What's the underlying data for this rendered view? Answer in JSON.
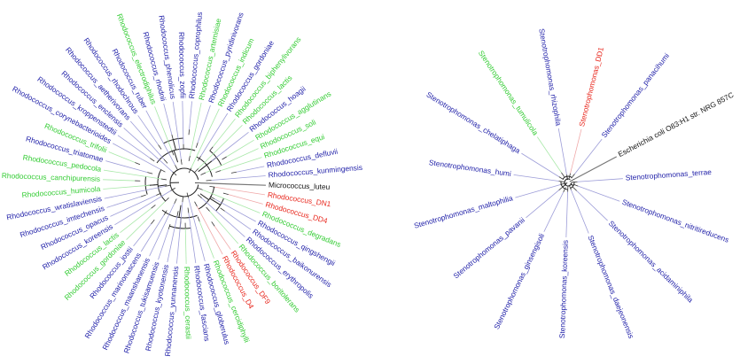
{
  "colors": {
    "blue": "#1f1fa8",
    "green": "#33cc33",
    "red": "#e8281e",
    "black": "#111111",
    "branch_blue": "#9d9dd8",
    "branch_green": "#a8e8a8",
    "branch_red": "#f0a8a8",
    "branch_black": "#777777"
  },
  "left_tree": {
    "leaves": [
      {
        "name": "Micrococcus_luteu",
        "color": "black"
      },
      {
        "name": "Rhodococcus_DN1",
        "color": "red"
      },
      {
        "name": "Rhodococcus_DD4",
        "color": "red"
      },
      {
        "name": "Rhodococcus_degradans",
        "color": "green"
      },
      {
        "name": "Rhodococcus_qingshengii",
        "color": "blue"
      },
      {
        "name": "Rhodococcus_baikonurensis",
        "color": "blue"
      },
      {
        "name": "Rhodococcus_erythropolis",
        "color": "blue"
      },
      {
        "name": "Rhodococcus_boritolerans",
        "color": "green"
      },
      {
        "name": "Rhodococcus_DF9",
        "color": "red"
      },
      {
        "name": "Rhodococcus_D4",
        "color": "red"
      },
      {
        "name": "Rhodococcus_cercidiphylli",
        "color": "green"
      },
      {
        "name": "Rhodococcus_globerulus",
        "color": "blue"
      },
      {
        "name": "Rhodococcus_fascians",
        "color": "blue"
      },
      {
        "name": "Rhodococcus_cerastii",
        "color": "green"
      },
      {
        "name": "Rhodococcus_yunnanensis",
        "color": "blue"
      },
      {
        "name": "Rhodococcus_kyotonensis",
        "color": "blue"
      },
      {
        "name": "Rhodococcus_tukisamuensis",
        "color": "blue"
      },
      {
        "name": "Rhodococcus_maanshanensis",
        "color": "blue"
      },
      {
        "name": "Rhodococcus_marinonascens",
        "color": "blue"
      },
      {
        "name": "Rhodococcus_jostii",
        "color": "blue"
      },
      {
        "name": "Rhodococcus_gordoniae",
        "color": "green"
      },
      {
        "name": "Rhodococcus_lactis",
        "color": "green"
      },
      {
        "name": "Rhodococcus_koreensis",
        "color": "blue"
      },
      {
        "name": "Rhodococcus_opacus",
        "color": "blue"
      },
      {
        "name": "Rhodococcus_imtechensis",
        "color": "blue"
      },
      {
        "name": "Rhodococcus_wratislaviensis",
        "color": "blue"
      },
      {
        "name": "Rhodococcus_humicola",
        "color": "green"
      },
      {
        "name": "Rhodococcus_canchipurensis",
        "color": "green"
      },
      {
        "name": "Rhodococcus_pedocola",
        "color": "green"
      },
      {
        "name": "Rhodococcus_triatomae",
        "color": "blue"
      },
      {
        "name": "Rhodococcus_trifolii",
        "color": "green"
      },
      {
        "name": "Rhodococcus_corynebacterioides",
        "color": "blue"
      },
      {
        "name": "Rhodococcus_kroppenstedtii",
        "color": "blue"
      },
      {
        "name": "Rhodococcus_enclensis",
        "color": "blue"
      },
      {
        "name": "Rhodococcus_aetherivorans",
        "color": "blue"
      },
      {
        "name": "Rhodococcus_rhodochrous",
        "color": "blue"
      },
      {
        "name": "Rhodococcus_ruber",
        "color": "blue"
      },
      {
        "name": "Rhodococcus_electrodiphilus",
        "color": "green"
      },
      {
        "name": "Rhodococcus_rhodnii",
        "color": "blue"
      },
      {
        "name": "Rhodococcus_phenolicus",
        "color": "blue"
      },
      {
        "name": "Rhodococcus_zopfii",
        "color": "blue"
      },
      {
        "name": "Rhodococcus_coprophilus",
        "color": "blue"
      },
      {
        "name": "Rhodococcus_artemisiae",
        "color": "green"
      },
      {
        "name": "Rhodococcus_pyridinivorans",
        "color": "blue"
      },
      {
        "name": "Rhodococcus_indicum",
        "color": "green"
      },
      {
        "name": "Rhodococcus_gordoniae",
        "color": "blue"
      },
      {
        "name": "Rhodococcus_biphenylivorans",
        "color": "green"
      },
      {
        "name": "Rhodococcus_lactis",
        "color": "green"
      },
      {
        "name": "Rhodococcus_hoagii",
        "color": "blue"
      },
      {
        "name": "Rhodococcus_agglutinans",
        "color": "green"
      },
      {
        "name": "Rhodococcus_soli",
        "color": "green"
      },
      {
        "name": "Rhodococcus_equi",
        "color": "green"
      },
      {
        "name": "Rhodococcus_defluvii",
        "color": "blue"
      },
      {
        "name": "Rhodococcus_kunmingensis",
        "color": "blue"
      }
    ]
  },
  "right_tree": {
    "leaves": [
      {
        "name": "Escherichia coli O83:H1 str. NRG 857C",
        "color": "black"
      },
      {
        "name": "Stenotrophomonas_terrae",
        "color": "blue"
      },
      {
        "name": "Stenotrophomonas_nitritireducens",
        "color": "blue"
      },
      {
        "name": "Stenotrophomonas_acidaminiphila",
        "color": "blue"
      },
      {
        "name": "Stenotrophomonas_daejeonensis",
        "color": "blue"
      },
      {
        "name": "Stenotrophomonas_koreensis",
        "color": "blue"
      },
      {
        "name": "Stenotrophomonas_ginsengisoli",
        "color": "blue"
      },
      {
        "name": "Stenotrophomonas_pavanii",
        "color": "blue"
      },
      {
        "name": "Stenotrophomonas_maltophilia",
        "color": "blue"
      },
      {
        "name": "Stenotrophomonas_humi",
        "color": "blue"
      },
      {
        "name": "Stenotrophomonas_chelatiphaga",
        "color": "blue"
      },
      {
        "name": "Stenotrophomonas_tumulicola",
        "color": "green"
      },
      {
        "name": "Stenotrophomonas_rhizophila",
        "color": "blue"
      },
      {
        "name": "Stenotrophomonas_DD1",
        "color": "red"
      },
      {
        "name": "Stenotrophomonas_panacihumi",
        "color": "blue"
      }
    ]
  }
}
